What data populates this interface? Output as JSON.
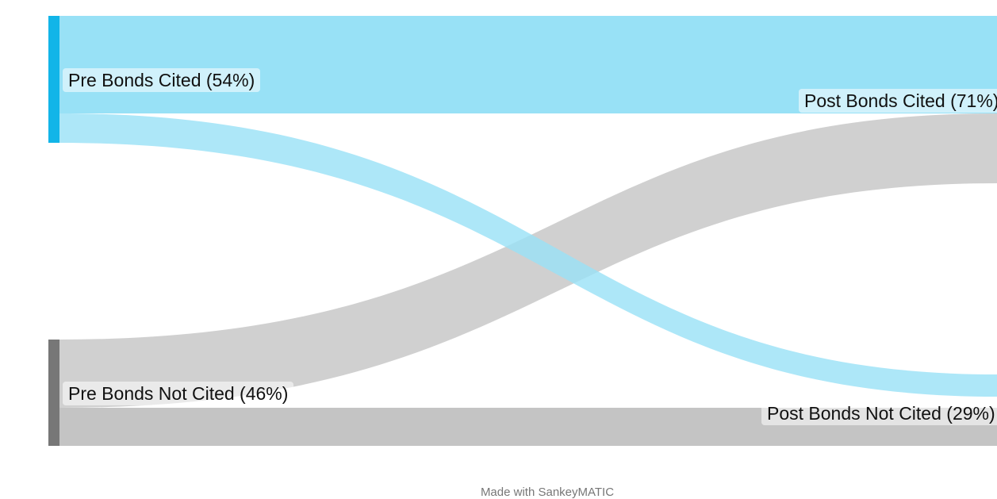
{
  "diagram": {
    "type": "sankey",
    "nodes": [
      {
        "id": "pre_cited",
        "label": "Pre Bonds Cited (54%)",
        "color": "#12b5e8"
      },
      {
        "id": "pre_not",
        "label": "Pre Bonds Not Cited (46%)",
        "color": "#777777"
      },
      {
        "id": "post_cited",
        "label": "Post Bonds Cited (71%)",
        "color": "#12b5e8"
      },
      {
        "id": "post_not",
        "label": "Post Bonds Not Cited (29%)",
        "color": "#777777"
      }
    ],
    "flows": [
      {
        "from": "Pre Bonds Cited",
        "to": "Post Bonds Cited",
        "color": "#98e1f6"
      },
      {
        "from": "Pre Bonds Cited",
        "to": "Post Bonds Not Cited",
        "color": "#98e1f6"
      },
      {
        "from": "Pre Bonds Not Cited",
        "to": "Post Bonds Cited",
        "color": "#c4c4c4"
      },
      {
        "from": "Pre Bonds Not Cited",
        "to": "Post Bonds Not Cited",
        "color": "#c4c4c4"
      }
    ]
  },
  "credit": "Made with SankeyMATIC"
}
